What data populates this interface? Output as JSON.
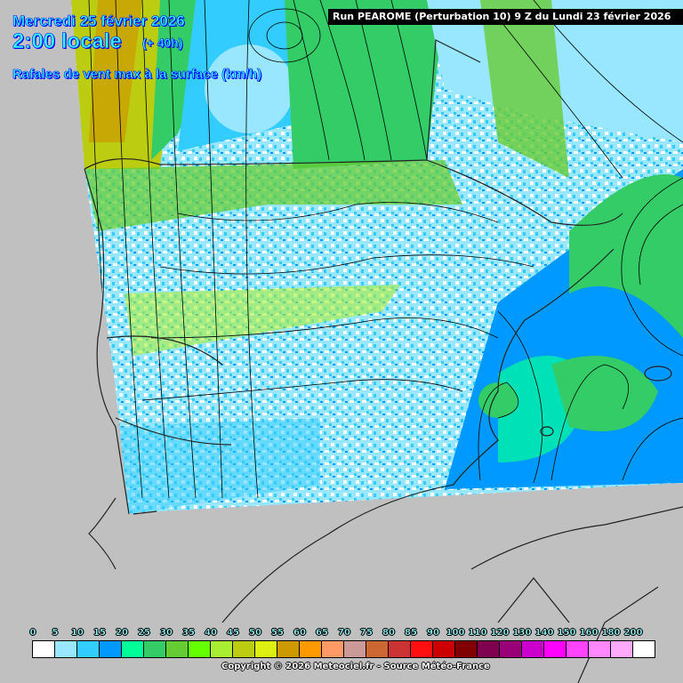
{
  "header": {
    "date": "Mercredi 25 février 2026",
    "hour": "2:00 locale",
    "lead": "(+ 40h)",
    "parameter": "Rafales de vent max à la surface (km/h)",
    "run": "Run PEAROME (Perturbation 10) 9 Z du Lundi 23 février 2026"
  },
  "legend": {
    "labels": [
      "0",
      "5",
      "10",
      "15",
      "20",
      "25",
      "30",
      "35",
      "40",
      "45",
      "50",
      "55",
      "60",
      "65",
      "70",
      "75",
      "80",
      "85",
      "90",
      "100",
      "110",
      "120",
      "130",
      "140",
      "150",
      "160",
      "180",
      "200"
    ],
    "colors": [
      "#ffffff",
      "#99e6ff",
      "#33ccff",
      "#0099ff",
      "#00ff99",
      "#33cc66",
      "#66cc33",
      "#66ff00",
      "#aaee33",
      "#bbcc11",
      "#ddee11",
      "#cc9900",
      "#ff9900",
      "#ff9966",
      "#cc9999",
      "#cc6633",
      "#cc3333",
      "#ff0f0f",
      "#cc0000",
      "#800000",
      "#800050",
      "#990077",
      "#cc00cc",
      "#ff00ff",
      "#ff44ff",
      "#ff88ff",
      "#ffaaff",
      "#ffffff"
    ]
  },
  "footer": {
    "copyright": "Copyright © 2026 Meteociel.fr - Source Météo-France"
  }
}
